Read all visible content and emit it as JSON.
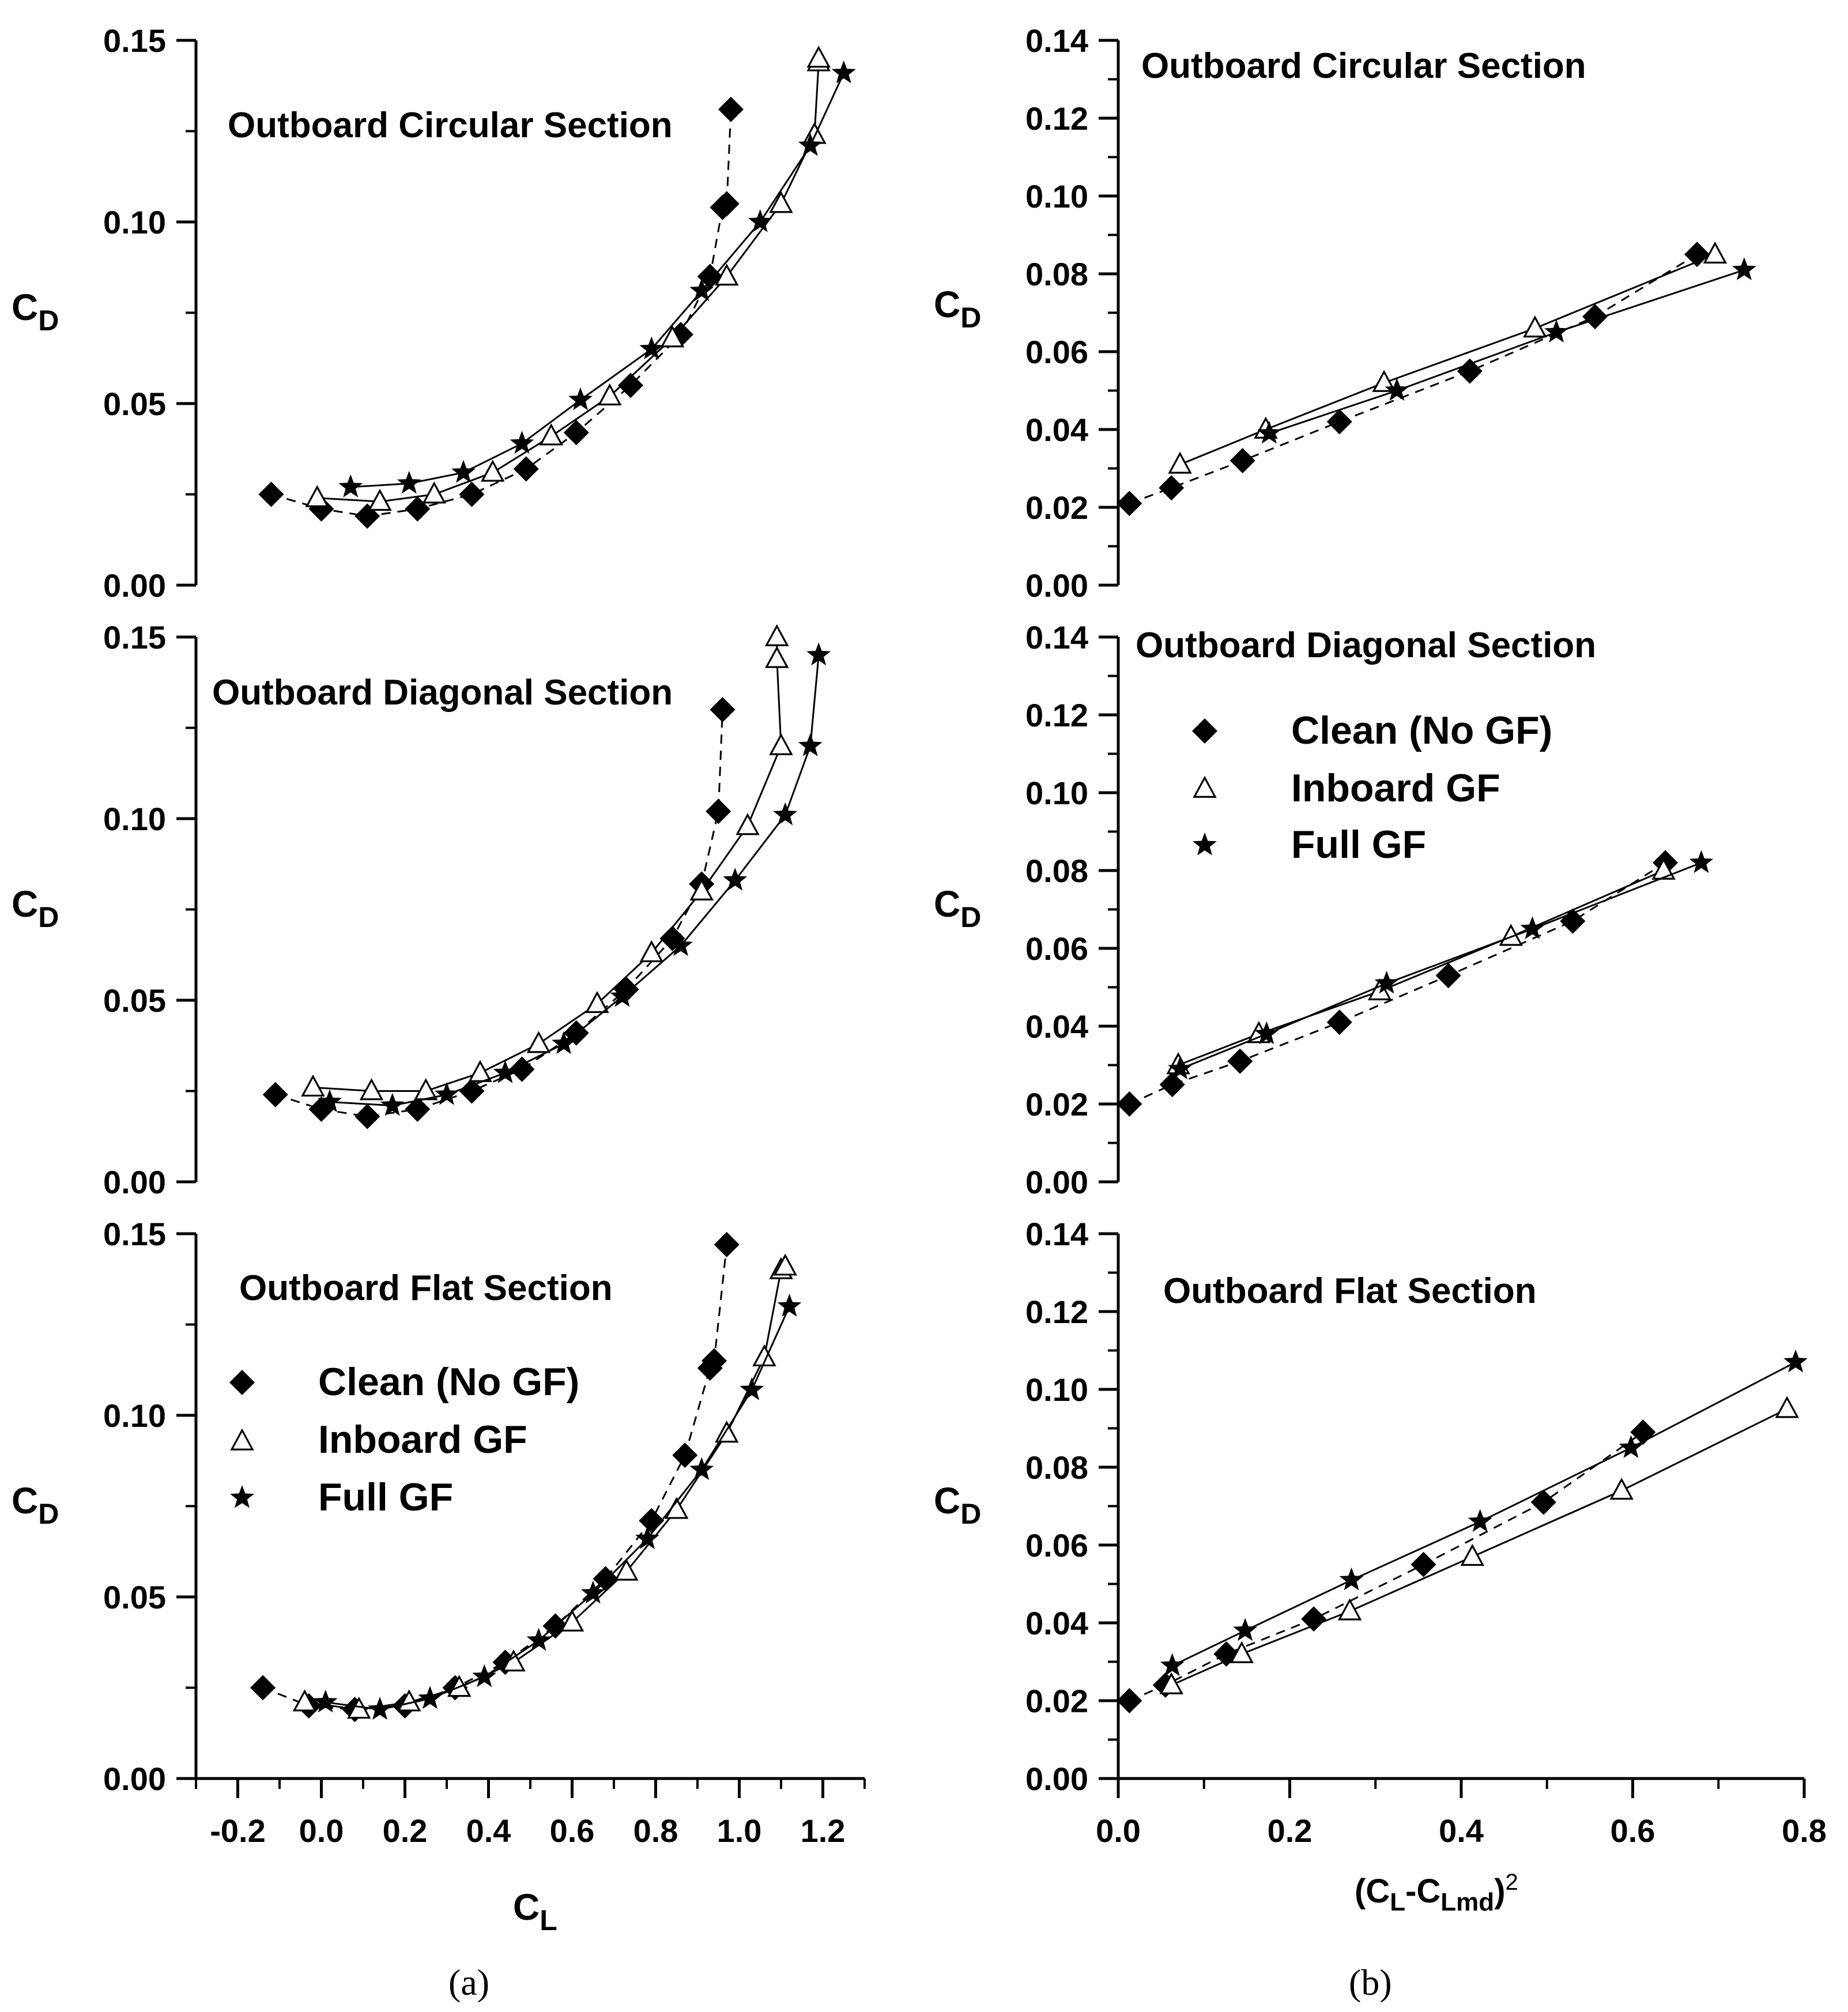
{
  "figure": {
    "label_a": "(a)",
    "label_b": "(b)"
  },
  "legend": {
    "clean": "Clean (No GF)",
    "inboard": "Inboard GF",
    "full": "Full GF"
  },
  "axis_text": {
    "cd_sub": "D",
    "cd_main": "C",
    "cl_main": "C",
    "cl_sub": "L",
    "cb_main1": "(C",
    "cb_sub1": "L",
    "cb_main2": "-C",
    "cb_sub2": "Lmd",
    "cb_main3": ")",
    "cb_sup": "2"
  },
  "chart_data": [
    {
      "id": "a1",
      "type": "scatter",
      "title": "Outboard Circular Section",
      "xlabel": "CL",
      "ylabel": "CD",
      "xlim": [
        -0.3,
        1.3
      ],
      "ylim": [
        0,
        0.15
      ],
      "yticks": [
        "0.00",
        "0.05",
        "0.10",
        "0.15"
      ],
      "xticks": [],
      "series": [
        {
          "name": "Clean (No GF)",
          "marker": "diamond",
          "line": "dashed",
          "points": [
            [
              -0.12,
              0.025
            ],
            [
              0.0,
              0.021
            ],
            [
              0.11,
              0.019
            ],
            [
              0.23,
              0.021
            ],
            [
              0.36,
              0.025
            ],
            [
              0.49,
              0.032
            ],
            [
              0.61,
              0.042
            ],
            [
              0.74,
              0.055
            ],
            [
              0.86,
              0.069
            ],
            [
              0.93,
              0.085
            ],
            [
              0.96,
              0.104
            ],
            [
              0.97,
              0.105
            ],
            [
              0.98,
              0.131
            ]
          ]
        },
        {
          "name": "Inboard GF",
          "marker": "triangle",
          "line": "solid",
          "points": [
            [
              -0.01,
              0.024
            ],
            [
              0.14,
              0.023
            ],
            [
              0.27,
              0.025
            ],
            [
              0.41,
              0.031
            ],
            [
              0.55,
              0.041
            ],
            [
              0.69,
              0.052
            ],
            [
              0.84,
              0.068
            ],
            [
              0.97,
              0.085
            ],
            [
              1.1,
              0.105
            ],
            [
              1.18,
              0.124
            ],
            [
              1.19,
              0.144
            ],
            [
              1.19,
              0.145
            ]
          ]
        },
        {
          "name": "Full GF",
          "marker": "star",
          "line": "solid",
          "points": [
            [
              0.07,
              0.027
            ],
            [
              0.21,
              0.028
            ],
            [
              0.34,
              0.031
            ],
            [
              0.48,
              0.039
            ],
            [
              0.62,
              0.051
            ],
            [
              0.79,
              0.065
            ],
            [
              0.91,
              0.081
            ],
            [
              1.05,
              0.1
            ],
            [
              1.17,
              0.121
            ],
            [
              1.25,
              0.141
            ]
          ]
        }
      ]
    },
    {
      "id": "a2",
      "type": "scatter",
      "title": "Outboard Diagonal Section",
      "xlabel": "CL",
      "ylabel": "CD",
      "xlim": [
        -0.3,
        1.3
      ],
      "ylim": [
        0,
        0.15
      ],
      "yticks": [
        "0.00",
        "0.05",
        "0.10",
        "0.15"
      ],
      "xticks": [],
      "series": [
        {
          "name": "Clean (No GF)",
          "marker": "diamond",
          "line": "dashed",
          "points": [
            [
              -0.11,
              0.024
            ],
            [
              0.0,
              0.02
            ],
            [
              0.11,
              0.018
            ],
            [
              0.23,
              0.02
            ],
            [
              0.36,
              0.025
            ],
            [
              0.48,
              0.031
            ],
            [
              0.61,
              0.041
            ],
            [
              0.73,
              0.053
            ],
            [
              0.84,
              0.067
            ],
            [
              0.91,
              0.082
            ],
            [
              0.95,
              0.102
            ],
            [
              0.96,
              0.13
            ]
          ]
        },
        {
          "name": "Inboard GF",
          "marker": "triangle",
          "line": "solid",
          "points": [
            [
              -0.02,
              0.026
            ],
            [
              0.12,
              0.025
            ],
            [
              0.25,
              0.025
            ],
            [
              0.38,
              0.03
            ],
            [
              0.52,
              0.038
            ],
            [
              0.66,
              0.049
            ],
            [
              0.79,
              0.063
            ],
            [
              0.91,
              0.08
            ],
            [
              1.02,
              0.098
            ],
            [
              1.1,
              0.12
            ],
            [
              1.09,
              0.144
            ],
            [
              1.09,
              0.15
            ]
          ]
        },
        {
          "name": "Full GF",
          "marker": "star",
          "line": "solid",
          "points": [
            [
              0.02,
              0.022
            ],
            [
              0.17,
              0.021
            ],
            [
              0.3,
              0.024
            ],
            [
              0.44,
              0.03
            ],
            [
              0.58,
              0.038
            ],
            [
              0.72,
              0.051
            ],
            [
              0.86,
              0.065
            ],
            [
              0.99,
              0.083
            ],
            [
              1.11,
              0.101
            ],
            [
              1.17,
              0.12
            ],
            [
              1.19,
              0.145
            ]
          ]
        }
      ]
    },
    {
      "id": "a3",
      "type": "scatter",
      "title": "Outboard Flat Section",
      "xlabel": "CL",
      "ylabel": "CD",
      "xlim": [
        -0.3,
        1.3
      ],
      "ylim": [
        0,
        0.15
      ],
      "yticks": [
        "0.00",
        "0.05",
        "0.10",
        "0.15"
      ],
      "xticks": [
        "-0.2",
        "0.0",
        "0.2",
        "0.4",
        "0.6",
        "0.8",
        "1.0",
        "1.2"
      ],
      "series": [
        {
          "name": "Clean (No GF)",
          "marker": "diamond",
          "line": "dashed",
          "points": [
            [
              -0.14,
              0.025
            ],
            [
              -0.03,
              0.02
            ],
            [
              0.08,
              0.019
            ],
            [
              0.2,
              0.02
            ],
            [
              0.32,
              0.025
            ],
            [
              0.44,
              0.032
            ],
            [
              0.56,
              0.042
            ],
            [
              0.68,
              0.055
            ],
            [
              0.79,
              0.071
            ],
            [
              0.87,
              0.089
            ],
            [
              0.93,
              0.113
            ],
            [
              0.94,
              0.115
            ],
            [
              0.97,
              0.147
            ]
          ]
        },
        {
          "name": "Inboard GF",
          "marker": "triangle",
          "line": "solid",
          "points": [
            [
              -0.04,
              0.021
            ],
            [
              0.09,
              0.019
            ],
            [
              0.21,
              0.021
            ],
            [
              0.33,
              0.025
            ],
            [
              0.46,
              0.032
            ],
            [
              0.6,
              0.043
            ],
            [
              0.73,
              0.057
            ],
            [
              0.85,
              0.074
            ],
            [
              0.97,
              0.095
            ],
            [
              1.06,
              0.116
            ],
            [
              1.1,
              0.14
            ],
            [
              1.11,
              0.141
            ]
          ]
        },
        {
          "name": "Full GF",
          "marker": "star",
          "line": "solid",
          "points": [
            [
              0.01,
              0.021
            ],
            [
              0.14,
              0.019
            ],
            [
              0.26,
              0.022
            ],
            [
              0.39,
              0.028
            ],
            [
              0.52,
              0.038
            ],
            [
              0.65,
              0.051
            ],
            [
              0.78,
              0.066
            ],
            [
              0.91,
              0.085
            ],
            [
              1.03,
              0.107
            ],
            [
              1.12,
              0.13
            ]
          ]
        }
      ]
    },
    {
      "id": "b1",
      "type": "scatter",
      "title": "Outboard Circular Section",
      "xlabel": "(CL-CLmd)^2",
      "ylabel": "CD",
      "xlim": [
        0,
        0.8
      ],
      "ylim": [
        0,
        0.14
      ],
      "yticks": [
        "0.00",
        "0.02",
        "0.04",
        "0.06",
        "0.08",
        "0.10",
        "0.12",
        "0.14"
      ],
      "xticks": [],
      "series": [
        {
          "name": "Clean (No GF)",
          "marker": "diamond",
          "line": "dashed",
          "points": [
            [
              0.013,
              0.021
            ],
            [
              0.062,
              0.025
            ],
            [
              0.145,
              0.032
            ],
            [
              0.258,
              0.042
            ],
            [
              0.41,
              0.055
            ],
            [
              0.556,
              0.069
            ],
            [
              0.675,
              0.085
            ]
          ]
        },
        {
          "name": "Inboard GF",
          "marker": "triangle",
          "line": "solid",
          "points": [
            [
              0.072,
              0.031
            ],
            [
              0.172,
              0.04
            ],
            [
              0.31,
              0.052
            ],
            [
              0.486,
              0.066
            ],
            [
              0.696,
              0.085
            ]
          ]
        },
        {
          "name": "Full GF",
          "marker": "star",
          "line": "solid",
          "points": [
            [
              0.176,
              0.039
            ],
            [
              0.325,
              0.05
            ],
            [
              0.511,
              0.065
            ],
            [
              0.73,
              0.081
            ]
          ]
        }
      ]
    },
    {
      "id": "b2",
      "type": "scatter",
      "title": "Outboard Diagonal Section",
      "xlabel": "(CL-CLmd)^2",
      "ylabel": "CD",
      "xlim": [
        0,
        0.8
      ],
      "ylim": [
        0,
        0.14
      ],
      "yticks": [
        "0.00",
        "0.02",
        "0.04",
        "0.06",
        "0.08",
        "0.10",
        "0.12",
        "0.14"
      ],
      "xticks": [],
      "series": [
        {
          "name": "Clean (No GF)",
          "marker": "diamond",
          "line": "dashed",
          "points": [
            [
              0.013,
              0.02
            ],
            [
              0.063,
              0.025
            ],
            [
              0.142,
              0.031
            ],
            [
              0.258,
              0.041
            ],
            [
              0.385,
              0.053
            ],
            [
              0.53,
              0.067
            ],
            [
              0.638,
              0.082
            ]
          ]
        },
        {
          "name": "Inboard GF",
          "marker": "triangle",
          "line": "solid",
          "points": [
            [
              0.07,
              0.03
            ],
            [
              0.164,
              0.038
            ],
            [
              0.305,
              0.049
            ],
            [
              0.458,
              0.063
            ],
            [
              0.636,
              0.08
            ]
          ]
        },
        {
          "name": "Full GF",
          "marker": "star",
          "line": "solid",
          "points": [
            [
              0.072,
              0.029
            ],
            [
              0.173,
              0.038
            ],
            [
              0.313,
              0.051
            ],
            [
              0.483,
              0.065
            ],
            [
              0.68,
              0.082
            ]
          ]
        }
      ]
    },
    {
      "id": "b3",
      "type": "scatter",
      "title": "Outboard Flat Section",
      "xlabel": "(CL-CLmd)^2",
      "ylabel": "CD",
      "xlim": [
        0,
        0.8
      ],
      "ylim": [
        0,
        0.14
      ],
      "yticks": [
        "0.00",
        "0.02",
        "0.04",
        "0.06",
        "0.08",
        "0.10",
        "0.12",
        "0.14"
      ],
      "xticks": [
        "0.0",
        "0.2",
        "0.4",
        "0.6",
        "0.8"
      ],
      "series": [
        {
          "name": "Clean (No GF)",
          "marker": "diamond",
          "line": "dashed",
          "points": [
            [
              0.013,
              0.02
            ],
            [
              0.055,
              0.024
            ],
            [
              0.126,
              0.032
            ],
            [
              0.228,
              0.041
            ],
            [
              0.356,
              0.055
            ],
            [
              0.496,
              0.071
            ],
            [
              0.612,
              0.089
            ]
          ]
        },
        {
          "name": "Inboard GF",
          "marker": "triangle",
          "line": "solid",
          "points": [
            [
              0.062,
              0.024
            ],
            [
              0.144,
              0.032
            ],
            [
              0.27,
              0.043
            ],
            [
              0.413,
              0.057
            ],
            [
              0.587,
              0.074
            ],
            [
              0.78,
              0.095
            ]
          ]
        },
        {
          "name": "Full GF",
          "marker": "star",
          "line": "solid",
          "points": [
            [
              0.063,
              0.029
            ],
            [
              0.148,
              0.038
            ],
            [
              0.272,
              0.051
            ],
            [
              0.422,
              0.066
            ],
            [
              0.598,
              0.085
            ],
            [
              0.79,
              0.107
            ]
          ]
        }
      ]
    }
  ]
}
